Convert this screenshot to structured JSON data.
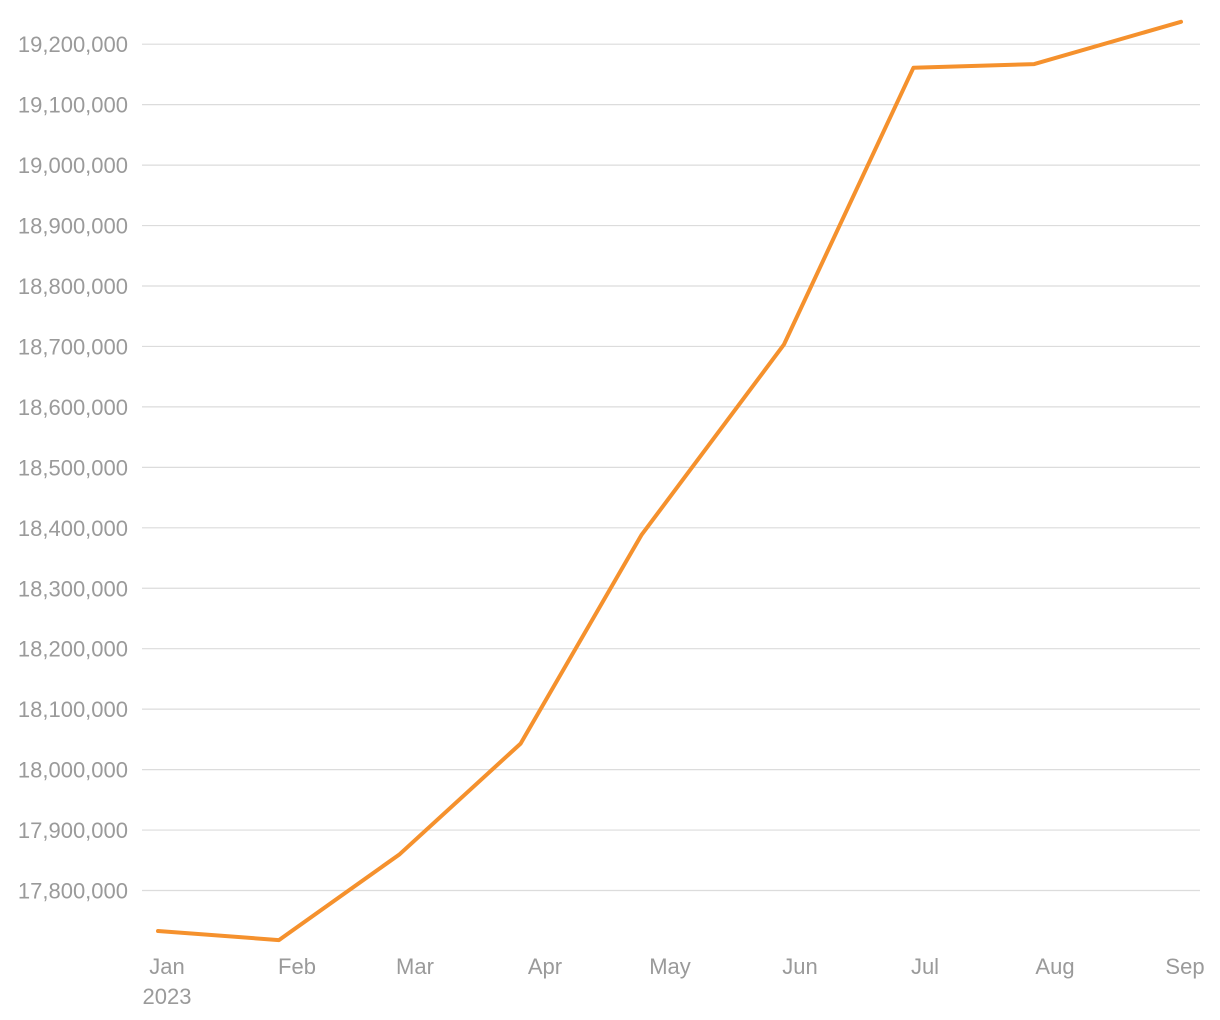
{
  "chart_data": {
    "type": "line",
    "title": "",
    "xlabel": "",
    "ylabel": "",
    "x": [
      "2023-01-06",
      "2023-02-03",
      "2023-03-03",
      "2023-03-31",
      "2023-04-28",
      "2023-05-31",
      "2023-06-30",
      "2023-07-28",
      "2023-08-31"
    ],
    "series": [
      {
        "color": "#f5912d",
        "values": [
          17733000,
          17718000,
          17860000,
          18043000,
          18388000,
          18703000,
          19161000,
          19167000,
          19237000
        ]
      }
    ],
    "ylim": [
      17710000,
      19240000
    ],
    "y_ticks": [
      "17,800,000",
      "17,900,000",
      "18,000,000",
      "18,100,000",
      "18,200,000",
      "18,300,000",
      "18,400,000",
      "18,500,000",
      "18,600,000",
      "18,700,000",
      "18,800,000",
      "18,900,000",
      "19,000,000",
      "19,100,000",
      "19,200,000"
    ],
    "x_ticks": [
      "Jan",
      "Feb",
      "Mar",
      "Apr",
      "May",
      "Jun",
      "Jul",
      "Aug",
      "Sep"
    ],
    "x_tick_sub": "2023",
    "grid": true,
    "legend": "none"
  }
}
